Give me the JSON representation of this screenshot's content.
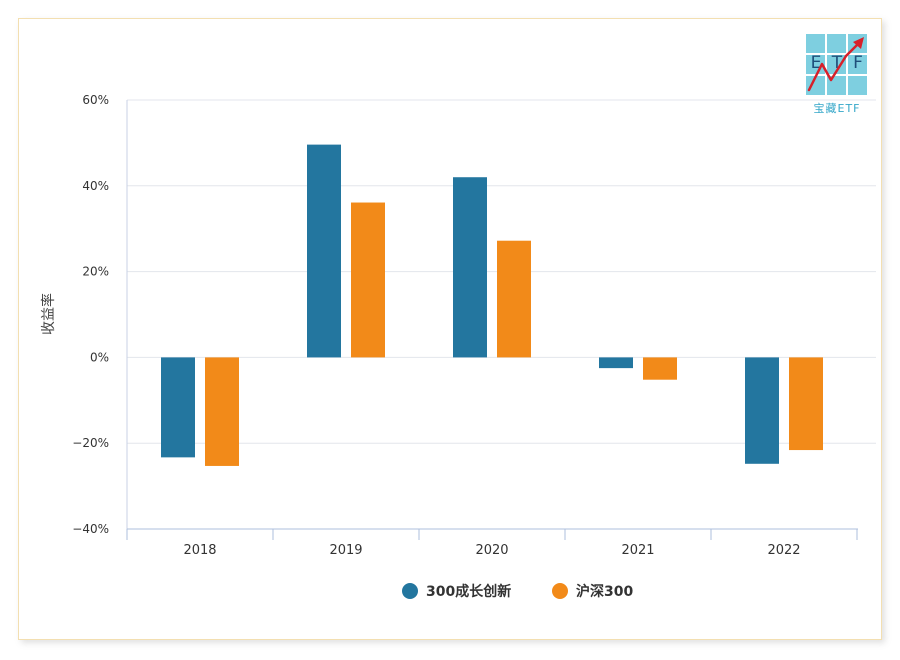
{
  "logo": {
    "letters": [
      "E",
      "T",
      "F"
    ],
    "caption": "宝藏ETF",
    "colors": {
      "tile": "#7ecfe0",
      "letters": "#1f4f7a",
      "arrow": "#d7202a",
      "caption": "#35a7c9"
    }
  },
  "chart_data": {
    "type": "bar",
    "title": "",
    "xlabel": "",
    "ylabel": "收益率",
    "categories": [
      "2018",
      "2019",
      "2020",
      "2021",
      "2022"
    ],
    "series": [
      {
        "name": "300成长创新",
        "color": "#23769f",
        "values": [
          -23.3,
          49.6,
          42.0,
          -2.5,
          -24.8
        ]
      },
      {
        "name": "沪深300",
        "color": "#f28a19",
        "values": [
          -25.3,
          36.1,
          27.2,
          -5.2,
          -21.6
        ]
      }
    ],
    "ylim": [
      -40,
      60
    ],
    "yticks": [
      60,
      40,
      20,
      0,
      -20,
      -40
    ],
    "ytick_labels": [
      "60%",
      "40%",
      "20%",
      "0%",
      "−20%",
      "−40%"
    ],
    "grid": true,
    "legend_position": "bottom"
  }
}
